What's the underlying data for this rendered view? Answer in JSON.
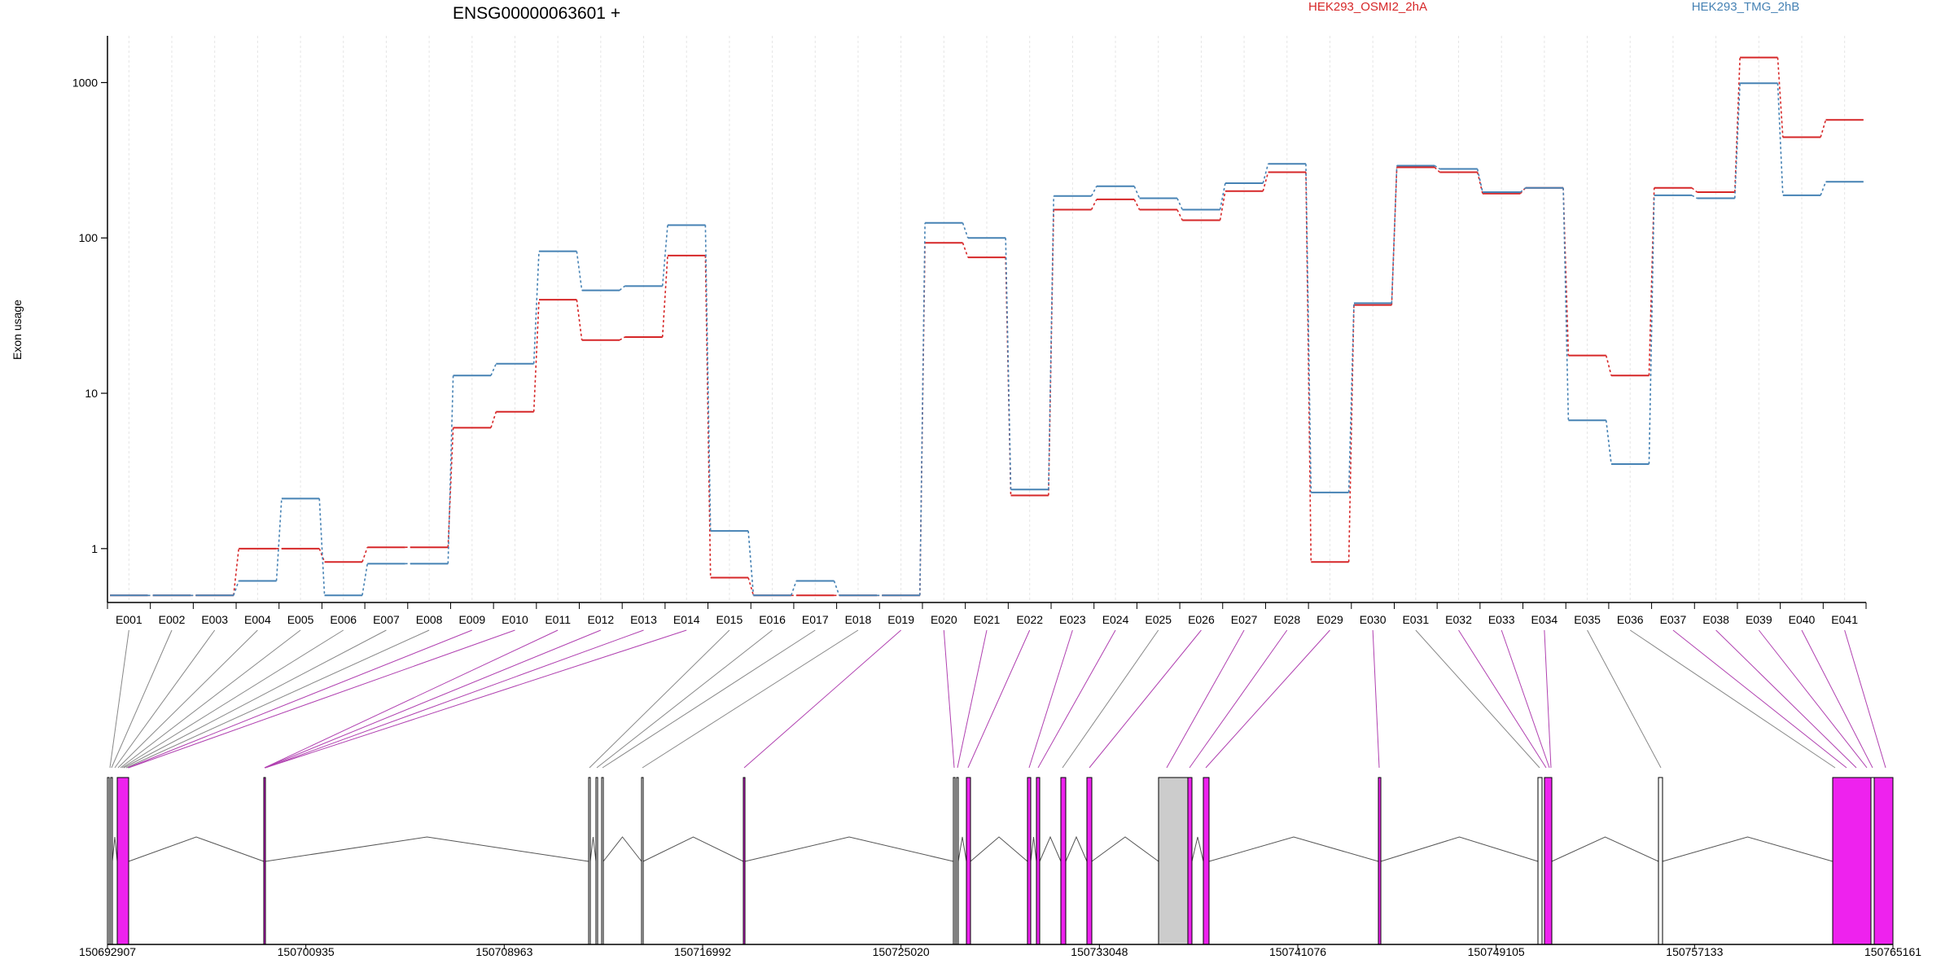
{
  "gene": {
    "title": "ENSG00000063601 +"
  },
  "chart_data": {
    "type": "line",
    "title": "ENSG00000063601 +",
    "xlabel": "",
    "ylabel": "Exon usage",
    "yscale": "log",
    "ylim": [
      0.45,
      2000
    ],
    "yticks": [
      1,
      10,
      100,
      1000
    ],
    "ytick_labels": [
      "1",
      "10",
      "100",
      "1000"
    ],
    "categories": [
      "E001",
      "E002",
      "E003",
      "E004",
      "E005",
      "E006",
      "E007",
      "E008",
      "E009",
      "E010",
      "E011",
      "E012",
      "E013",
      "E014",
      "E015",
      "E016",
      "E017",
      "E018",
      "E019",
      "E020",
      "E021",
      "E022",
      "E023",
      "E024",
      "E025",
      "E026",
      "E027",
      "E028",
      "E029",
      "E030",
      "E031",
      "E032",
      "E033",
      "E034",
      "E035",
      "E036",
      "E037",
      "E038",
      "E039",
      "E040",
      "E041"
    ],
    "series": [
      {
        "name": "HEK293_OSMI2_2hA",
        "color": "#d62728",
        "values": [
          0.5,
          0.5,
          0.5,
          1.0,
          1.0,
          0.82,
          1.02,
          1.02,
          6,
          7.6,
          40,
          22,
          23,
          77,
          0.65,
          0.5,
          0.5,
          0.5,
          0.5,
          93,
          75,
          2.2,
          152,
          177,
          152,
          130,
          200,
          265,
          0.82,
          37,
          285,
          265,
          193,
          210,
          17.5,
          13,
          210,
          197,
          1450,
          445,
          575
        ]
      },
      {
        "name": "HEK293_TMG_2hB",
        "color": "#4682b4",
        "values": [
          0.5,
          0.5,
          0.5,
          0.62,
          2.1,
          0.5,
          0.8,
          0.8,
          13,
          15.5,
          82,
          46,
          49,
          121,
          1.3,
          0.5,
          0.62,
          0.5,
          0.5,
          125,
          100,
          2.4,
          186,
          215,
          180,
          152,
          225,
          300,
          2.3,
          38,
          292,
          278,
          197,
          210,
          6.7,
          3.5,
          188,
          180,
          990,
          188,
          230
        ]
      }
    ],
    "legend_placement": "top",
    "grid": "vertical",
    "genomic_axis": {
      "ticks": [
        "150692907",
        "150700935",
        "150708963",
        "150716992",
        "150725020",
        "150733048",
        "150741076",
        "150749105",
        "150757133",
        "150765161"
      ]
    }
  }
}
